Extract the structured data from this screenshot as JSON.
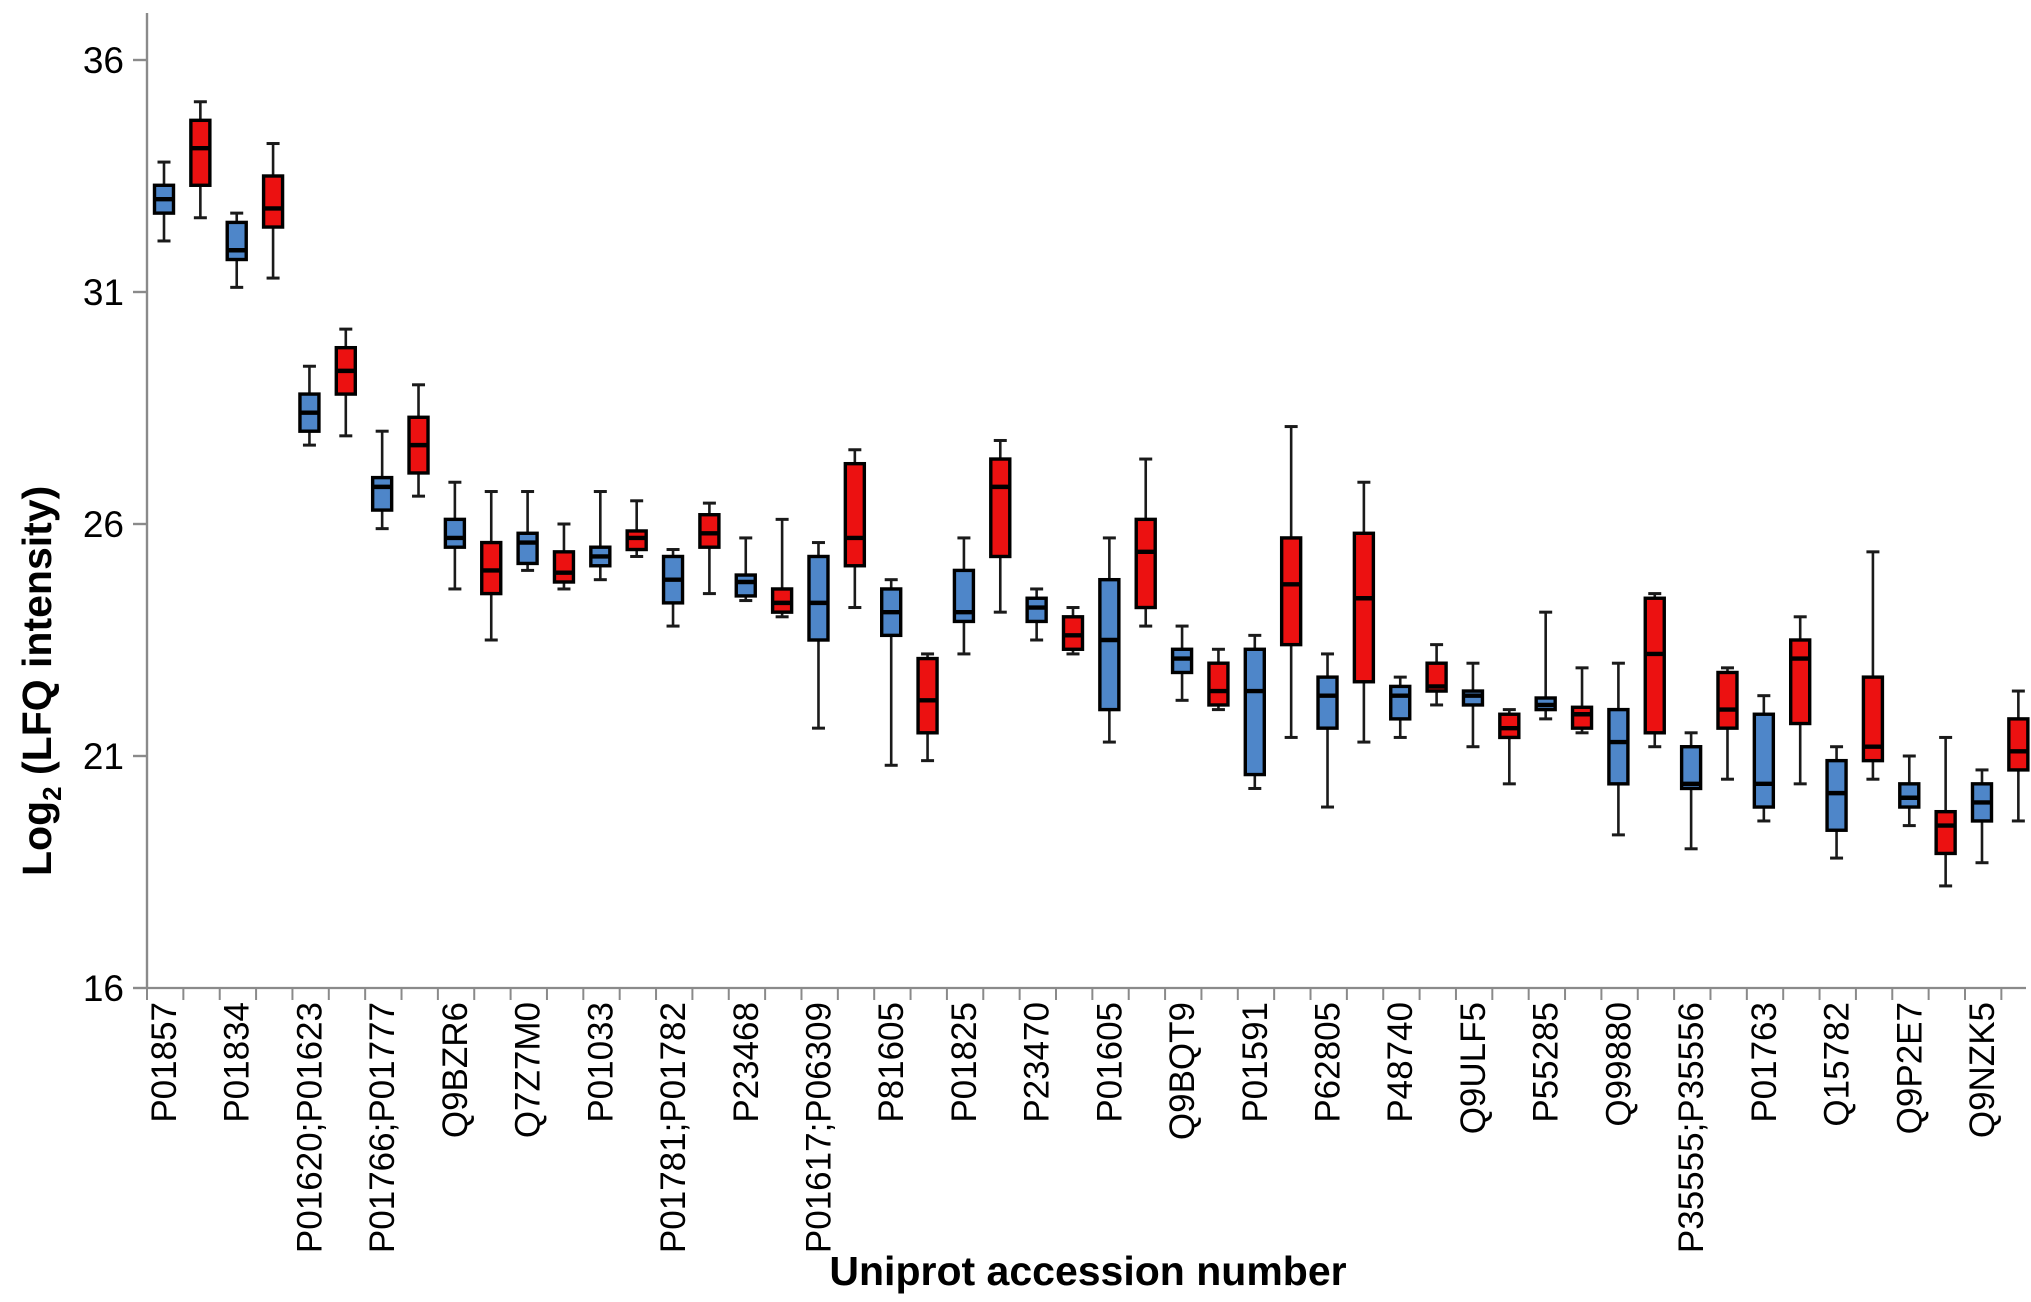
{
  "chart_data": {
    "type": "boxplot",
    "title": "",
    "xlabel": "Uniprot accession number",
    "ylabel": "Log2 (LFQ intensity)",
    "ylabel_parts": {
      "base": "Log",
      "subscript": "2",
      "rest": " (LFQ intensity)"
    },
    "y_axis": {
      "min": 16,
      "max": 36,
      "ticks": [
        36,
        31,
        26,
        21,
        16
      ],
      "axis_top_value": 37.0
    },
    "grid": false,
    "legend": "none",
    "colors": {
      "series_blue_fill": "#4E86C9",
      "series_red_fill": "#EC1111",
      "box_border": "#000000",
      "median_line": "#000000",
      "whisker": "#1a1a1a",
      "axis_line": "#8a8a8a",
      "tick_text": "#000000"
    },
    "series": [
      {
        "key": "blue",
        "color": "#4E86C9"
      },
      {
        "key": "red",
        "color": "#EC1111"
      }
    ],
    "box_value_order": [
      "whisker_low",
      "q1",
      "median",
      "q3",
      "whisker_high"
    ],
    "boxes": [
      {
        "category": "P01857",
        "blue": [
          32.1,
          32.7,
          33.0,
          33.3,
          33.8
        ],
        "red": [
          32.6,
          33.3,
          34.1,
          34.7,
          35.1
        ]
      },
      {
        "category": "P01834",
        "blue": [
          31.1,
          31.7,
          31.9,
          32.5,
          32.7
        ],
        "red": [
          31.3,
          32.4,
          32.8,
          33.5,
          34.2
        ]
      },
      {
        "category": "P01620;P01623",
        "blue": [
          27.7,
          28.0,
          28.4,
          28.8,
          29.4
        ],
        "red": [
          27.9,
          28.8,
          29.3,
          29.8,
          30.2
        ]
      },
      {
        "category": "P01766;P01777",
        "blue": [
          25.9,
          26.3,
          26.8,
          27.0,
          28.0
        ],
        "red": [
          26.6,
          27.1,
          27.7,
          28.3,
          29.0
        ]
      },
      {
        "category": "Q9BZR6",
        "blue": [
          24.6,
          25.5,
          25.7,
          26.1,
          26.9
        ],
        "red": [
          23.5,
          24.5,
          25.0,
          25.6,
          26.7
        ]
      },
      {
        "category": "Q7Z7M0",
        "blue": [
          25.0,
          25.15,
          25.6,
          25.8,
          26.7
        ],
        "red": [
          24.6,
          24.75,
          24.95,
          25.4,
          26.0
        ]
      },
      {
        "category": "P01033",
        "blue": [
          24.8,
          25.1,
          25.3,
          25.5,
          26.7
        ],
        "red": [
          25.3,
          25.45,
          25.7,
          25.85,
          26.5
        ]
      },
      {
        "category": "P01781;P01782",
        "blue": [
          23.8,
          24.3,
          24.8,
          25.3,
          25.45
        ],
        "red": [
          24.5,
          25.5,
          25.8,
          26.2,
          26.45
        ]
      },
      {
        "category": "P23468",
        "blue": [
          24.35,
          24.45,
          24.75,
          24.9,
          25.7
        ],
        "red": [
          24.0,
          24.1,
          24.3,
          24.6,
          26.1
        ]
      },
      {
        "category": "P01617;P06309",
        "blue": [
          21.6,
          23.5,
          24.3,
          25.3,
          25.6
        ],
        "red": [
          24.2,
          25.1,
          25.7,
          27.3,
          27.6
        ]
      },
      {
        "category": "P81605",
        "blue": [
          20.8,
          23.6,
          24.1,
          24.6,
          24.8
        ],
        "red": [
          20.9,
          21.5,
          22.2,
          23.1,
          23.2
        ]
      },
      {
        "category": "P01825",
        "blue": [
          23.2,
          23.9,
          24.1,
          25.0,
          25.7
        ],
        "red": [
          24.1,
          25.3,
          26.8,
          27.4,
          27.8
        ]
      },
      {
        "category": "P23470",
        "blue": [
          23.5,
          23.9,
          24.2,
          24.4,
          24.6
        ],
        "red": [
          23.2,
          23.3,
          23.6,
          24.0,
          24.2
        ]
      },
      {
        "category": "P01605",
        "blue": [
          21.3,
          22.0,
          23.5,
          24.8,
          25.7
        ],
        "red": [
          23.8,
          24.2,
          25.4,
          26.1,
          27.4
        ]
      },
      {
        "category": "Q9BQT9",
        "blue": [
          22.2,
          22.8,
          23.1,
          23.3,
          23.8
        ],
        "red": [
          22.0,
          22.1,
          22.4,
          23.0,
          23.3
        ]
      },
      {
        "category": "P01591",
        "blue": [
          20.3,
          20.6,
          22.4,
          23.3,
          23.6
        ],
        "red": [
          21.4,
          23.4,
          24.7,
          25.7,
          28.1
        ]
      },
      {
        "category": "P62805",
        "blue": [
          19.9,
          21.6,
          22.3,
          22.7,
          23.2
        ],
        "red": [
          21.3,
          22.6,
          24.4,
          25.8,
          26.9
        ]
      },
      {
        "category": "P48740",
        "blue": [
          21.4,
          21.8,
          22.3,
          22.5,
          22.7
        ],
        "red": [
          22.1,
          22.4,
          22.5,
          23.0,
          23.4
        ]
      },
      {
        "category": "Q9ULF5",
        "blue": [
          21.2,
          22.1,
          22.3,
          22.4,
          23.0
        ],
        "red": [
          20.4,
          21.4,
          21.6,
          21.9,
          22.0
        ]
      },
      {
        "category": "P55285",
        "blue": [
          21.8,
          22.0,
          22.1,
          22.25,
          24.1
        ],
        "red": [
          21.5,
          21.6,
          21.9,
          22.05,
          22.9
        ]
      },
      {
        "category": "Q99880",
        "blue": [
          19.3,
          20.4,
          21.3,
          22.0,
          23.0
        ],
        "red": [
          21.2,
          21.5,
          23.2,
          24.4,
          24.5
        ]
      },
      {
        "category": "P35555;P35556",
        "blue": [
          19.0,
          20.3,
          20.4,
          21.2,
          21.5
        ],
        "red": [
          20.5,
          21.6,
          22.0,
          22.8,
          22.9
        ]
      },
      {
        "category": "P01763",
        "blue": [
          19.6,
          19.9,
          20.4,
          21.9,
          22.3
        ],
        "red": [
          20.4,
          21.7,
          23.1,
          23.5,
          24.0
        ]
      },
      {
        "category": "Q15782",
        "blue": [
          18.8,
          19.4,
          20.2,
          20.9,
          21.2
        ],
        "red": [
          20.5,
          20.9,
          21.2,
          22.7,
          25.4
        ]
      },
      {
        "category": "Q9P2E7",
        "blue": [
          19.5,
          19.9,
          20.1,
          20.4,
          21.0
        ],
        "red": [
          18.2,
          18.9,
          19.5,
          19.8,
          21.4
        ]
      },
      {
        "category": "Q9NZK5",
        "blue": [
          18.7,
          19.6,
          20.0,
          20.4,
          20.7
        ],
        "red": [
          19.6,
          20.7,
          21.1,
          21.8,
          22.4
        ]
      }
    ]
  }
}
